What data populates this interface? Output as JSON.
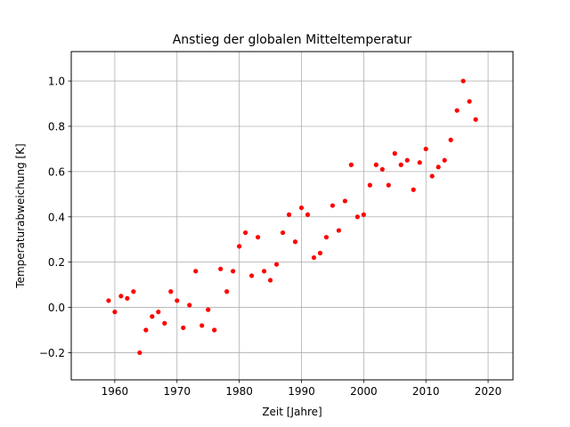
{
  "chart_data": {
    "type": "scatter",
    "title": "Anstieg der globalen Mitteltemperatur",
    "xlabel": "Zeit [Jahre]",
    "ylabel": "Temperaturabweichung [K]",
    "xlim": [
      1953,
      2024
    ],
    "ylim": [
      -0.32,
      1.13
    ],
    "xticks": [
      1960,
      1970,
      1980,
      1990,
      2000,
      2010,
      2020
    ],
    "xtick_labels": [
      "1960",
      "1970",
      "1980",
      "1990",
      "2000",
      "2010",
      "2020"
    ],
    "yticks": [
      -0.2,
      0.0,
      0.2,
      0.4,
      0.6,
      0.8,
      1.0
    ],
    "ytick_labels": [
      "−0.2",
      "0.0",
      "0.2",
      "0.4",
      "0.6",
      "0.8",
      "1.0"
    ],
    "grid": true,
    "marker_color": "#ff0000",
    "x": [
      1959,
      1960,
      1961,
      1962,
      1963,
      1964,
      1965,
      1966,
      1967,
      1968,
      1969,
      1970,
      1971,
      1972,
      1973,
      1974,
      1975,
      1976,
      1977,
      1978,
      1979,
      1980,
      1981,
      1982,
      1983,
      1984,
      1985,
      1986,
      1987,
      1988,
      1989,
      1990,
      1991,
      1992,
      1993,
      1994,
      1995,
      1996,
      1997,
      1998,
      1999,
      2000,
      2001,
      2002,
      2003,
      2004,
      2005,
      2006,
      2007,
      2008,
      2009,
      2010,
      2011,
      2012,
      2013,
      2014,
      2015,
      2016,
      2017,
      2018
    ],
    "y": [
      0.03,
      -0.02,
      0.05,
      0.04,
      0.07,
      -0.2,
      -0.1,
      -0.04,
      -0.02,
      -0.07,
      0.07,
      0.03,
      -0.09,
      0.01,
      0.16,
      -0.08,
      -0.01,
      -0.1,
      0.17,
      0.07,
      0.16,
      0.27,
      0.33,
      0.14,
      0.31,
      0.16,
      0.12,
      0.19,
      0.33,
      0.41,
      0.29,
      0.44,
      0.41,
      0.22,
      0.24,
      0.31,
      0.45,
      0.34,
      0.47,
      0.63,
      0.4,
      0.41,
      0.54,
      0.63,
      0.61,
      0.54,
      0.68,
      0.63,
      0.65,
      0.52,
      0.64,
      0.7,
      0.58,
      0.62,
      0.65,
      0.74,
      0.87,
      1.0,
      0.91,
      0.83
    ]
  }
}
